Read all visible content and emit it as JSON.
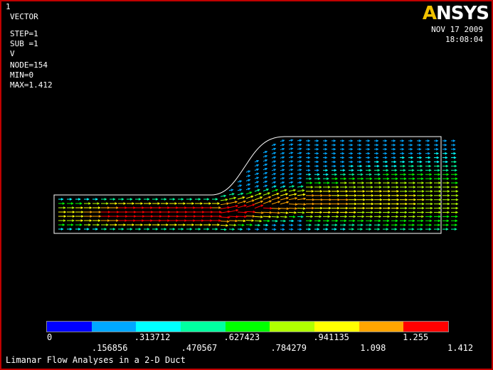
{
  "window_number": "1",
  "info": {
    "plot_type": "VECTOR",
    "step": "STEP=1",
    "sub": "SUB =1",
    "quantity": "V",
    "node": "NODE=154",
    "min": "MIN=0",
    "max": "MAX=1.412"
  },
  "logo": {
    "prefix": "A",
    "main": "NSYS"
  },
  "date": "NOV 17 2009",
  "time": "18:08:04",
  "legend": {
    "colors": [
      "#0000ff",
      "#00a8ff",
      "#00ffff",
      "#00ffa0",
      "#00ff00",
      "#b0ff00",
      "#ffff00",
      "#ffa500",
      "#ff0000"
    ],
    "labels_top": [
      "0",
      ".313712",
      ".627423",
      ".941135",
      "1.255"
    ],
    "labels_bottom": [
      ".156856",
      ".470567",
      ".784279",
      "1.098",
      "1.412"
    ]
  },
  "caption": "Limanar Flow Analyses in a 2-D Duct",
  "colors": {
    "border": "#c00000",
    "background": "#000000",
    "outline": "#ffffff"
  },
  "chart_data": {
    "type": "vector",
    "quantity": "V",
    "min": 0,
    "max": 1.412,
    "node_of_max": 154,
    "step": 1,
    "substep": 1
  }
}
